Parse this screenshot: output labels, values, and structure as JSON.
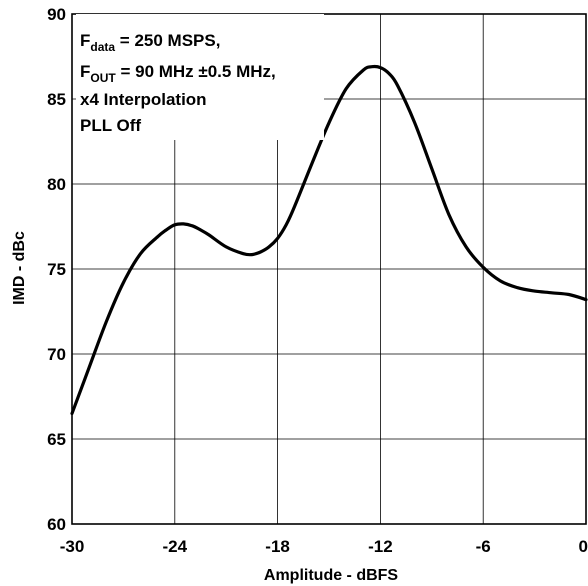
{
  "chart_data": {
    "type": "line",
    "title": "",
    "xlabel": "Amplitude - dBFS",
    "ylabel": "IMD - dBc",
    "xlim": [
      -30,
      0
    ],
    "ylim": [
      60,
      90
    ],
    "xticks": [
      -30,
      -24,
      -18,
      -12,
      -6,
      0
    ],
    "yticks": [
      60,
      65,
      70,
      75,
      80,
      85,
      90
    ],
    "grid": true,
    "legend": "none",
    "line_color": "#000000",
    "annotation": {
      "line1": {
        "base": "F",
        "sub": "data",
        "rest": " = 250 MSPS,"
      },
      "line2": {
        "base": "F",
        "sub": "OUT",
        "rest": " = 90 MHz ±0.5 MHz,"
      },
      "line3": "x4 Interpolation",
      "line4": "PLL Off"
    },
    "series": [
      {
        "x": [
          -30,
          -29,
          -28,
          -27,
          -26,
          -25,
          -24.5,
          -24,
          -23.5,
          -23,
          -22.5,
          -22,
          -21,
          -20,
          -19.5,
          -19,
          -18.5,
          -18,
          -17.5,
          -17,
          -16,
          -15,
          -14,
          -13,
          -12.5,
          -12,
          -11.5,
          -11,
          -10,
          -9,
          -8,
          -7,
          -6,
          -5,
          -4,
          -3,
          -2,
          -1,
          0
        ],
        "y": [
          66.5,
          69.2,
          71.9,
          74.2,
          75.9,
          76.9,
          77.3,
          77.6,
          77.65,
          77.55,
          77.3,
          77.0,
          76.3,
          75.9,
          75.85,
          76.0,
          76.3,
          76.8,
          77.6,
          78.7,
          81.2,
          83.6,
          85.6,
          86.7,
          86.9,
          86.85,
          86.5,
          85.8,
          83.6,
          80.9,
          78.2,
          76.3,
          75.1,
          74.3,
          73.9,
          73.7,
          73.6,
          73.5,
          73.2
        ]
      }
    ]
  }
}
